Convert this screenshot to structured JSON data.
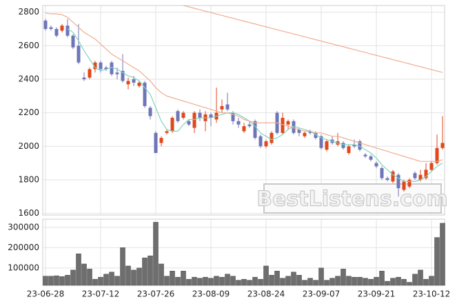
{
  "chart_data": [
    {
      "type": "candlestick",
      "up_color": "#e0471a",
      "down_color": "#6f76b8",
      "ylim": [
        1590,
        2840
      ],
      "yticks": [
        1600,
        1800,
        2000,
        2200,
        2400,
        2600,
        2800
      ],
      "grid": true,
      "watermark": "BestListens.com",
      "ohlc": [
        [
          2750,
          2760,
          2690,
          2700
        ],
        [
          2710,
          2720,
          2690,
          2700
        ],
        [
          2700,
          2710,
          2650,
          2660
        ],
        [
          2690,
          2730,
          2680,
          2720
        ],
        [
          2720,
          2760,
          2650,
          2660
        ],
        [
          2660,
          2670,
          2580,
          2590
        ],
        [
          2600,
          2730,
          2490,
          2500
        ],
        [
          2410,
          2440,
          2390,
          2400
        ],
        [
          2410,
          2470,
          2400,
          2460
        ],
        [
          2460,
          2510,
          2440,
          2500
        ],
        [
          2500,
          2510,
          2440,
          2460
        ],
        [
          2470,
          2480,
          2450,
          2460
        ],
        [
          2500,
          2510,
          2420,
          2430
        ],
        [
          2440,
          2470,
          2400,
          2430
        ],
        [
          2450,
          2550,
          2380,
          2390
        ],
        [
          2370,
          2410,
          2340,
          2390
        ],
        [
          2400,
          2420,
          2360,
          2380
        ],
        [
          2360,
          2390,
          2350,
          2380
        ],
        [
          2380,
          2390,
          2230,
          2240
        ],
        [
          2230,
          2240,
          2160,
          2180
        ],
        [
          2080,
          2090,
          1960,
          1960
        ],
        [
          2020,
          2060,
          2000,
          2050
        ],
        [
          2080,
          2100,
          2070,
          2090
        ],
        [
          2090,
          2180,
          2080,
          2170
        ],
        [
          2210,
          2220,
          2140,
          2150
        ],
        [
          2170,
          2210,
          2160,
          2200
        ],
        [
          2150,
          2160,
          2120,
          2130
        ],
        [
          2110,
          2210,
          2080,
          2200
        ],
        [
          2200,
          2220,
          2150,
          2170
        ],
        [
          2150,
          2210,
          2090,
          2190
        ],
        [
          2190,
          2200,
          2120,
          2170
        ],
        [
          2160,
          2350,
          2140,
          2200
        ],
        [
          2220,
          2280,
          2200,
          2240
        ],
        [
          2250,
          2320,
          2210,
          2220
        ],
        [
          2200,
          2210,
          2130,
          2150
        ],
        [
          2150,
          2170,
          2110,
          2130
        ],
        [
          2090,
          2140,
          2080,
          2120
        ],
        [
          2130,
          2150,
          2110,
          2120
        ],
        [
          2150,
          2160,
          2040,
          2050
        ],
        [
          2060,
          2070,
          1990,
          2000
        ],
        [
          2000,
          2040,
          1990,
          2030
        ],
        [
          2020,
          2090,
          2010,
          2080
        ],
        [
          2200,
          2210,
          2070,
          2080
        ],
        [
          2080,
          2200,
          2070,
          2170
        ],
        [
          2130,
          2160,
          2100,
          2150
        ],
        [
          2150,
          2160,
          2070,
          2080
        ],
        [
          2100,
          2110,
          2060,
          2080
        ],
        [
          2060,
          2090,
          2050,
          2080
        ],
        [
          2090,
          2100,
          2070,
          2080
        ],
        [
          2080,
          2090,
          2040,
          2050
        ],
        [
          2060,
          2070,
          1980,
          1990
        ],
        [
          1980,
          2040,
          1970,
          2030
        ],
        [
          2040,
          2060,
          2010,
          2020
        ],
        [
          2010,
          2080,
          2000,
          2030
        ],
        [
          2020,
          2030,
          1980,
          1990
        ],
        [
          1960,
          2010,
          1950,
          2000
        ],
        [
          2010,
          2040,
          1990,
          2000
        ],
        [
          2030,
          2040,
          1970,
          1980
        ],
        [
          1950,
          1960,
          1930,
          1940
        ],
        [
          1940,
          1950,
          1910,
          1920
        ],
        [
          1900,
          1910,
          1870,
          1880
        ],
        [
          1870,
          1880,
          1800,
          1810
        ],
        [
          1810,
          1820,
          1790,
          1800
        ],
        [
          1790,
          1860,
          1780,
          1850
        ],
        [
          1830,
          1840,
          1700,
          1750
        ],
        [
          1740,
          1800,
          1730,
          1790
        ],
        [
          1760,
          1810,
          1750,
          1800
        ],
        [
          1840,
          1850,
          1800,
          1810
        ],
        [
          1800,
          1860,
          1790,
          1830
        ],
        [
          1810,
          1900,
          1800,
          1860
        ],
        [
          1860,
          1910,
          1850,
          1900
        ],
        [
          1900,
          2070,
          1890,
          1990
        ],
        [
          1990,
          2180,
          1980,
          2020
        ]
      ],
      "series": [
        {
          "color": "#7fd3bd",
          "values": [
            null,
            null,
            null,
            null,
            2700,
            2680,
            2630,
            2570,
            2520,
            2470,
            2450,
            2460,
            2470,
            2460,
            2440,
            2420,
            2410,
            2390,
            2350,
            2310,
            2230,
            2150,
            2100,
            2090,
            2090,
            2130,
            2160,
            2160,
            2170,
            2170,
            2170,
            2180,
            2190,
            2200,
            2200,
            2190,
            2170,
            2150,
            2120,
            2080,
            2060,
            2040,
            2050,
            2070,
            2100,
            2120,
            2110,
            2100,
            2090,
            2070,
            2050,
            2040,
            2030,
            2020,
            2010,
            2010,
            2010,
            2000,
            1980,
            1960,
            1930,
            1890,
            1860,
            1830,
            1810,
            1790,
            1790,
            1790,
            1800,
            1820,
            1850,
            1880,
            1900
          ]
        },
        {
          "color": "#f0ac8e",
          "values": [
            2795,
            2790,
            2790,
            2785,
            2770,
            2740,
            2710,
            2680,
            2660,
            2640,
            2610,
            2580,
            2550,
            2530,
            2510,
            2490,
            2470,
            2450,
            2420,
            2390,
            2350,
            2320,
            2300,
            2290,
            2280,
            2270,
            2260,
            2250,
            2240,
            2230,
            2220,
            2210,
            2200,
            2200,
            2190,
            2180,
            2160,
            2150,
            2140,
            2140,
            2140,
            2140,
            2140,
            2130,
            2120,
            2110,
            2100,
            2090,
            2090,
            2080,
            2080,
            2070,
            2060,
            2060,
            2050,
            2040,
            2030,
            2020,
            2010,
            2000,
            1990,
            1980,
            1970,
            1960,
            1950,
            1940,
            1930,
            1920,
            1910,
            1910,
            1910,
            1910,
            1920
          ]
        },
        {
          "color": "#f0ac8e",
          "values": [
            null,
            null,
            null,
            null,
            null,
            null,
            null,
            null,
            null,
            null,
            null,
            null,
            null,
            null,
            null,
            null,
            null,
            null,
            null,
            null,
            null,
            null,
            null,
            null,
            null,
            2840,
            2832,
            2823,
            2815,
            2806,
            2798,
            2789,
            2781,
            2772,
            2764,
            2755,
            2747,
            2738,
            2730,
            2721,
            2713,
            2704,
            2696,
            2687,
            2679,
            2670,
            2662,
            2653,
            2645,
            2636,
            2628,
            2619,
            2611,
            2602,
            2594,
            2585,
            2577,
            2568,
            2560,
            2551,
            2543,
            2534,
            2526,
            2517,
            2509,
            2500,
            2492,
            2483,
            2475,
            2466,
            2458,
            2449,
            2441
          ]
        }
      ]
    },
    {
      "type": "bar",
      "color": "#6e6e6e",
      "ylim": [
        15000,
        340000
      ],
      "yticks": [
        100000,
        200000,
        300000
      ],
      "grid": true,
      "categories": [
        "23-06-28",
        null,
        null,
        null,
        null,
        null,
        null,
        null,
        null,
        null,
        "23-07-12",
        null,
        null,
        null,
        null,
        null,
        null,
        null,
        null,
        null,
        "23-07-26",
        null,
        null,
        null,
        null,
        null,
        null,
        null,
        null,
        null,
        "23-08-09",
        null,
        null,
        null,
        null,
        null,
        null,
        null,
        null,
        null,
        "23-08-24",
        null,
        null,
        null,
        null,
        null,
        null,
        null,
        null,
        null,
        "23-09-07",
        null,
        null,
        null,
        null,
        null,
        null,
        null,
        null,
        null,
        "23-09-21",
        null,
        null,
        null,
        null,
        null,
        null,
        null,
        null,
        null,
        "23-10-12",
        null,
        null
      ],
      "values": [
        60000,
        60000,
        62000,
        58000,
        65000,
        90000,
        170000,
        120000,
        95000,
        45000,
        55000,
        70000,
        80000,
        60000,
        200000,
        110000,
        90000,
        100000,
        150000,
        160000,
        325000,
        120000,
        60000,
        85000,
        55000,
        85000,
        45000,
        55000,
        50000,
        55000,
        50000,
        60000,
        55000,
        70000,
        60000,
        40000,
        45000,
        40000,
        55000,
        45000,
        110000,
        65000,
        85000,
        50000,
        60000,
        80000,
        65000,
        40000,
        50000,
        40000,
        100000,
        40000,
        50000,
        60000,
        95000,
        60000,
        55000,
        55000,
        50000,
        45000,
        55000,
        85000,
        35000,
        50000,
        55000,
        45000,
        30000,
        70000,
        90000,
        45000,
        60000,
        250000,
        320000
      ]
    }
  ]
}
